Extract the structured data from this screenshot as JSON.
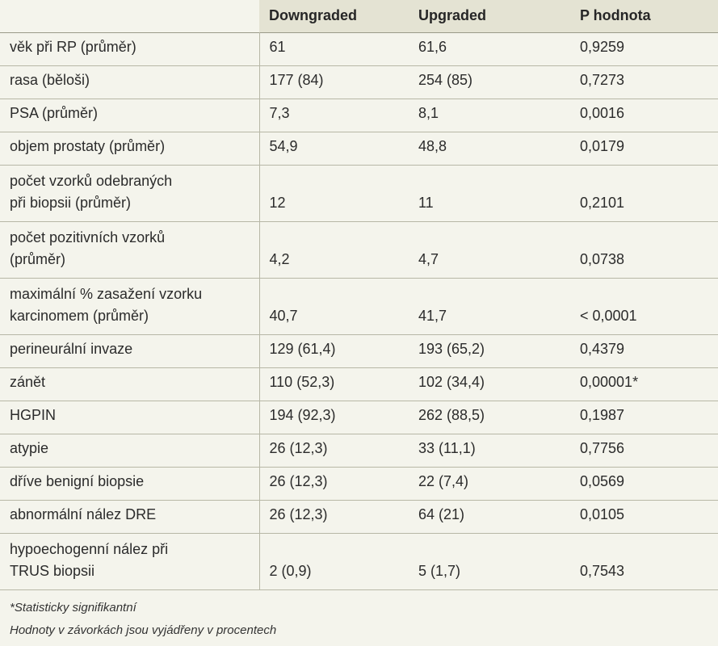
{
  "table": {
    "headers": [
      "",
      "Downgraded",
      "Upgraded",
      "P hodnota"
    ],
    "rows": [
      {
        "label": "věk při RP (průměr)",
        "downgraded": "61",
        "upgraded": "61,6",
        "p": "0,9259"
      },
      {
        "label": "rasa (běloši)",
        "downgraded": "177 (84)",
        "upgraded": "254 (85)",
        "p": "0,7273"
      },
      {
        "label": "PSA (průměr)",
        "downgraded": "7,3",
        "upgraded": "8,1",
        "p": "0,0016"
      },
      {
        "label": "objem prostaty (průměr)",
        "downgraded": "54,9",
        "upgraded": "48,8",
        "p": "0,0179"
      },
      {
        "label_line1": "počet vzorků odebraných",
        "label_line2": "při biopsii (průměr)",
        "downgraded": "12",
        "upgraded": "11",
        "p": "0,2101"
      },
      {
        "label_line1": "počet pozitivních vzorků",
        "label_line2": "(průměr)",
        "downgraded": "4,2",
        "upgraded": "4,7",
        "p": "0,0738"
      },
      {
        "label_line1": "maximální % zasažení vzorku",
        "label_line2": "karcinomem (průměr)",
        "downgraded": "40,7",
        "upgraded": "41,7",
        "p": "< 0,0001"
      },
      {
        "label": "perineurální invaze",
        "downgraded": "129 (61,4)",
        "upgraded": "193 (65,2)",
        "p": "0,4379"
      },
      {
        "label": "zánět",
        "downgraded": "110 (52,3)",
        "upgraded": "102 (34,4)",
        "p": "0,00001*"
      },
      {
        "label": "HGPIN",
        "downgraded": "194 (92,3)",
        "upgraded": "262 (88,5)",
        "p": "0,1987"
      },
      {
        "label": "atypie",
        "downgraded": "26 (12,3)",
        "upgraded": "33 (11,1)",
        "p": "0,7756"
      },
      {
        "label": "dříve benigní biopsie",
        "downgraded": "26 (12,3)",
        "upgraded": "22 (7,4)",
        "p": "0,0569"
      },
      {
        "label": "abnormální nález DRE",
        "downgraded": "26 (12,3)",
        "upgraded": "64 (21)",
        "p": "0,0105"
      },
      {
        "label_line1": "hypoechogenní nález při",
        "label_line2": "TRUS biopsii",
        "downgraded": "2 (0,9)",
        "upgraded": "5 (1,7)",
        "p": "0,7543"
      }
    ]
  },
  "footnotes": {
    "line1": "*Statisticky signifikantní",
    "line2": "Hodnoty v závorkách jsou vyjádřeny v procentech"
  }
}
